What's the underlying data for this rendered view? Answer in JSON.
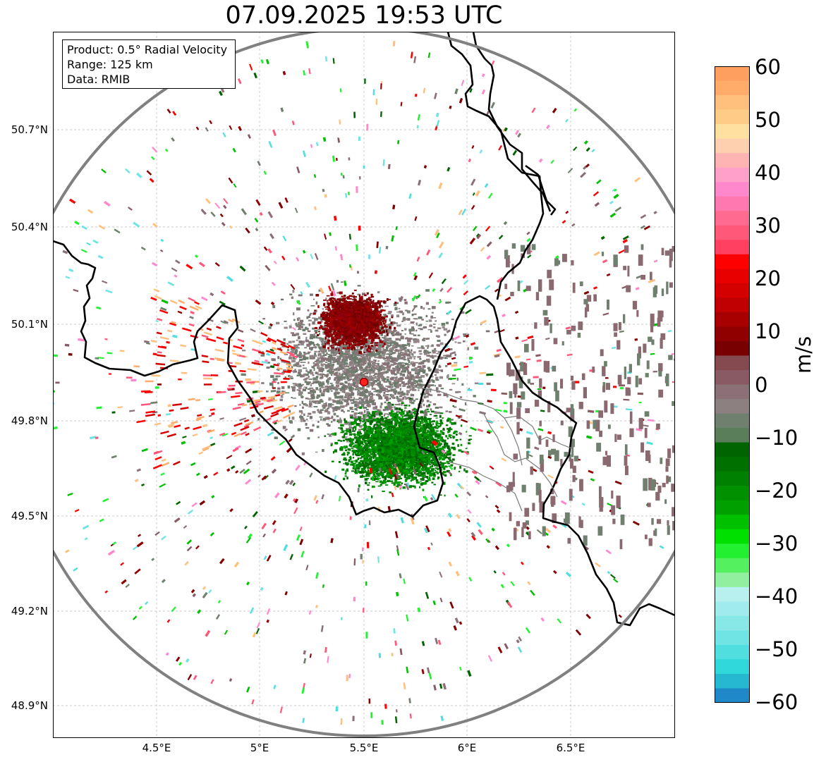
{
  "title": "07.09.2025 19:53 UTC",
  "info": {
    "product": "Product: 0.5° Radial Velocity",
    "range": "Range: 125 km",
    "source": "Data: RMIB"
  },
  "axes": {
    "lat_labels": [
      "50.7°N",
      "50.4°N",
      "50.1°N",
      "49.8°N",
      "49.5°N",
      "49.2°N",
      "48.9°N"
    ],
    "lon_labels": [
      "4.5°E",
      "5°E",
      "5.5°E",
      "6°E",
      "6.5°E"
    ]
  },
  "colorbar": {
    "unit": "m/s",
    "ticks": [
      "60",
      "50",
      "40",
      "30",
      "20",
      "10",
      "0",
      "−10",
      "−20",
      "−30",
      "−40",
      "−50",
      "−60"
    ],
    "range": [
      -60,
      60
    ]
  },
  "radar_site": {
    "lon": 5.5,
    "lat": 49.91
  },
  "colors": {
    "range_ring": "#808080",
    "border": "#000000",
    "site_marker": "#ff0000"
  }
}
